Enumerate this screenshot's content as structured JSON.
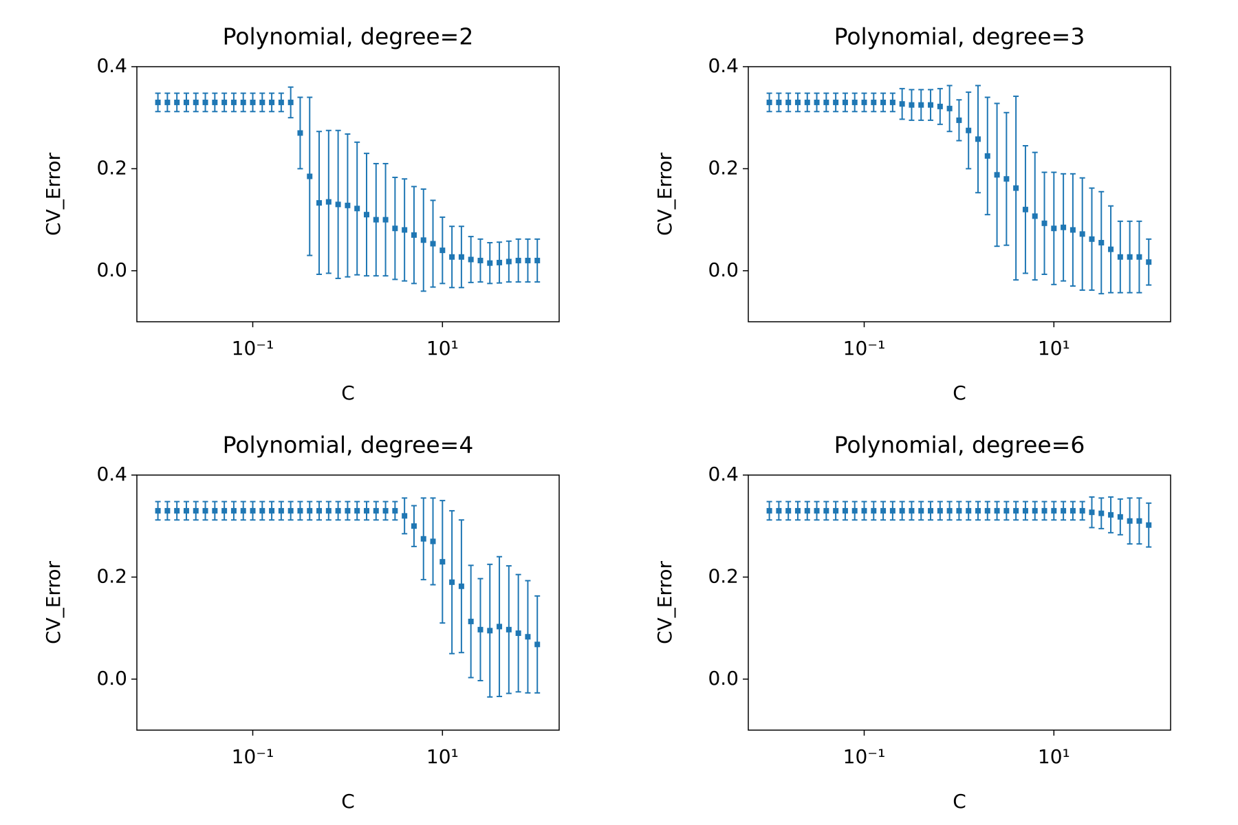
{
  "chart_data": [
    {
      "type": "errorbar",
      "title": "Polynomial, degree=2",
      "xlabel": "C",
      "ylabel": "CV_Error",
      "log_x": true,
      "color": "#1f77b4",
      "xlim": [
        0.006,
        170
      ],
      "ylim": [
        -0.1,
        0.4
      ],
      "xticks": [
        {
          "value": 0.1,
          "label": "10⁻¹"
        },
        {
          "value": 10,
          "label": "10¹"
        }
      ],
      "yticks": [
        {
          "value": 0,
          "label": "0.0"
        },
        0.2,
        0.4
      ],
      "x": [
        0.01,
        0.01259,
        0.01585,
        0.01995,
        0.02512,
        0.03162,
        0.03981,
        0.05012,
        0.0631,
        0.07943,
        0.1,
        0.1259,
        0.1585,
        0.1995,
        0.2512,
        0.3162,
        0.3981,
        0.5012,
        0.631,
        0.7943,
        1,
        1.259,
        1.585,
        1.995,
        2.512,
        3.162,
        3.981,
        5.012,
        6.31,
        7.943,
        10,
        12.59,
        15.85,
        19.95,
        25.12,
        31.62,
        39.81,
        50.12,
        63.1,
        79.43,
        100
      ],
      "values": [
        0.33,
        0.33,
        0.33,
        0.33,
        0.33,
        0.33,
        0.33,
        0.33,
        0.33,
        0.33,
        0.33,
        0.33,
        0.33,
        0.33,
        0.33,
        0.27,
        0.185,
        0.133,
        0.135,
        0.13,
        0.128,
        0.122,
        0.11,
        0.1,
        0.1,
        0.083,
        0.08,
        0.07,
        0.06,
        0.053,
        0.04,
        0.027,
        0.027,
        0.022,
        0.02,
        0.015,
        0.016,
        0.018,
        0.02,
        0.02,
        0.02
      ],
      "errors": [
        0.018,
        0.018,
        0.018,
        0.018,
        0.018,
        0.018,
        0.018,
        0.018,
        0.018,
        0.018,
        0.018,
        0.018,
        0.018,
        0.018,
        0.03,
        0.07,
        0.155,
        0.14,
        0.14,
        0.145,
        0.14,
        0.13,
        0.12,
        0.11,
        0.11,
        0.1,
        0.1,
        0.095,
        0.1,
        0.085,
        0.065,
        0.06,
        0.06,
        0.045,
        0.042,
        0.04,
        0.04,
        0.04,
        0.042,
        0.042,
        0.042
      ]
    },
    {
      "type": "errorbar",
      "title": "Polynomial, degree=3",
      "xlabel": "C",
      "ylabel": "CV_Error",
      "log_x": true,
      "color": "#1f77b4",
      "xlim": [
        0.006,
        170
      ],
      "ylim": [
        -0.1,
        0.4
      ],
      "xticks": [
        {
          "value": 0.1,
          "label": "10⁻¹"
        },
        {
          "value": 10,
          "label": "10¹"
        }
      ],
      "yticks": [
        {
          "value": 0,
          "label": "0.0"
        },
        0.2,
        0.4
      ],
      "x": [
        0.01,
        0.01259,
        0.01585,
        0.01995,
        0.02512,
        0.03162,
        0.03981,
        0.05012,
        0.0631,
        0.07943,
        0.1,
        0.1259,
        0.1585,
        0.1995,
        0.2512,
        0.3162,
        0.3981,
        0.5012,
        0.631,
        0.7943,
        1,
        1.259,
        1.585,
        1.995,
        2.512,
        3.162,
        3.981,
        5.012,
        6.31,
        7.943,
        10,
        12.59,
        15.85,
        19.95,
        25.12,
        31.62,
        39.81,
        50.12,
        63.1,
        79.43,
        100
      ],
      "values": [
        0.33,
        0.33,
        0.33,
        0.33,
        0.33,
        0.33,
        0.33,
        0.33,
        0.33,
        0.33,
        0.33,
        0.33,
        0.33,
        0.33,
        0.327,
        0.325,
        0.325,
        0.325,
        0.322,
        0.318,
        0.295,
        0.275,
        0.258,
        0.225,
        0.188,
        0.18,
        0.162,
        0.12,
        0.107,
        0.093,
        0.083,
        0.085,
        0.08,
        0.072,
        0.062,
        0.055,
        0.042,
        0.027,
        0.027,
        0.027,
        0.017
      ],
      "errors": [
        0.018,
        0.018,
        0.018,
        0.018,
        0.018,
        0.018,
        0.018,
        0.018,
        0.018,
        0.018,
        0.018,
        0.018,
        0.018,
        0.018,
        0.03,
        0.03,
        0.03,
        0.03,
        0.035,
        0.045,
        0.04,
        0.075,
        0.105,
        0.115,
        0.14,
        0.13,
        0.18,
        0.125,
        0.125,
        0.1,
        0.11,
        0.105,
        0.11,
        0.11,
        0.1,
        0.1,
        0.085,
        0.07,
        0.07,
        0.07,
        0.045
      ]
    },
    {
      "type": "errorbar",
      "title": "Polynomial, degree=4",
      "xlabel": "C",
      "ylabel": "CV_Error",
      "log_x": true,
      "color": "#1f77b4",
      "xlim": [
        0.006,
        170
      ],
      "ylim": [
        -0.1,
        0.4
      ],
      "xticks": [
        {
          "value": 0.1,
          "label": "10⁻¹"
        },
        {
          "value": 10,
          "label": "10¹"
        }
      ],
      "yticks": [
        {
          "value": 0,
          "label": "0.0"
        },
        0.2,
        0.4
      ],
      "x": [
        0.01,
        0.01259,
        0.01585,
        0.01995,
        0.02512,
        0.03162,
        0.03981,
        0.05012,
        0.0631,
        0.07943,
        0.1,
        0.1259,
        0.1585,
        0.1995,
        0.2512,
        0.3162,
        0.3981,
        0.5012,
        0.631,
        0.7943,
        1,
        1.259,
        1.585,
        1.995,
        2.512,
        3.162,
        3.981,
        5.012,
        6.31,
        7.943,
        10,
        12.59,
        15.85,
        19.95,
        25.12,
        31.62,
        39.81,
        50.12,
        63.1,
        79.43,
        100
      ],
      "values": [
        0.33,
        0.33,
        0.33,
        0.33,
        0.33,
        0.33,
        0.33,
        0.33,
        0.33,
        0.33,
        0.33,
        0.33,
        0.33,
        0.33,
        0.33,
        0.33,
        0.33,
        0.33,
        0.33,
        0.33,
        0.33,
        0.33,
        0.33,
        0.33,
        0.33,
        0.33,
        0.32,
        0.3,
        0.275,
        0.27,
        0.23,
        0.19,
        0.182,
        0.113,
        0.097,
        0.095,
        0.103,
        0.097,
        0.09,
        0.083,
        0.068
      ],
      "errors": [
        0.018,
        0.018,
        0.018,
        0.018,
        0.018,
        0.018,
        0.018,
        0.018,
        0.018,
        0.018,
        0.018,
        0.018,
        0.018,
        0.018,
        0.018,
        0.018,
        0.018,
        0.018,
        0.018,
        0.018,
        0.018,
        0.018,
        0.018,
        0.018,
        0.018,
        0.018,
        0.035,
        0.04,
        0.08,
        0.085,
        0.12,
        0.14,
        0.13,
        0.11,
        0.1,
        0.13,
        0.137,
        0.125,
        0.115,
        0.11,
        0.095
      ]
    },
    {
      "type": "errorbar",
      "title": "Polynomial, degree=6",
      "xlabel": "C",
      "ylabel": "CV_Error",
      "log_x": true,
      "color": "#1f77b4",
      "xlim": [
        0.006,
        170
      ],
      "ylim": [
        -0.1,
        0.4
      ],
      "xticks": [
        {
          "value": 0.1,
          "label": "10⁻¹"
        },
        {
          "value": 10,
          "label": "10¹"
        }
      ],
      "yticks": [
        {
          "value": 0,
          "label": "0.0"
        },
        0.2,
        0.4
      ],
      "x": [
        0.01,
        0.01259,
        0.01585,
        0.01995,
        0.02512,
        0.03162,
        0.03981,
        0.05012,
        0.0631,
        0.07943,
        0.1,
        0.1259,
        0.1585,
        0.1995,
        0.2512,
        0.3162,
        0.3981,
        0.5012,
        0.631,
        0.7943,
        1,
        1.259,
        1.585,
        1.995,
        2.512,
        3.162,
        3.981,
        5.012,
        6.31,
        7.943,
        10,
        12.59,
        15.85,
        19.95,
        25.12,
        31.62,
        39.81,
        50.12,
        63.1,
        79.43,
        100
      ],
      "values": [
        0.33,
        0.33,
        0.33,
        0.33,
        0.33,
        0.33,
        0.33,
        0.33,
        0.33,
        0.33,
        0.33,
        0.33,
        0.33,
        0.33,
        0.33,
        0.33,
        0.33,
        0.33,
        0.33,
        0.33,
        0.33,
        0.33,
        0.33,
        0.33,
        0.33,
        0.33,
        0.33,
        0.33,
        0.33,
        0.33,
        0.33,
        0.33,
        0.33,
        0.33,
        0.327,
        0.325,
        0.322,
        0.318,
        0.31,
        0.31,
        0.302
      ],
      "errors": [
        0.018,
        0.018,
        0.018,
        0.018,
        0.018,
        0.018,
        0.018,
        0.018,
        0.018,
        0.018,
        0.018,
        0.018,
        0.018,
        0.018,
        0.018,
        0.018,
        0.018,
        0.018,
        0.018,
        0.018,
        0.018,
        0.018,
        0.018,
        0.018,
        0.018,
        0.018,
        0.018,
        0.018,
        0.018,
        0.018,
        0.018,
        0.018,
        0.018,
        0.018,
        0.03,
        0.03,
        0.035,
        0.035,
        0.045,
        0.045,
        0.043
      ]
    }
  ]
}
